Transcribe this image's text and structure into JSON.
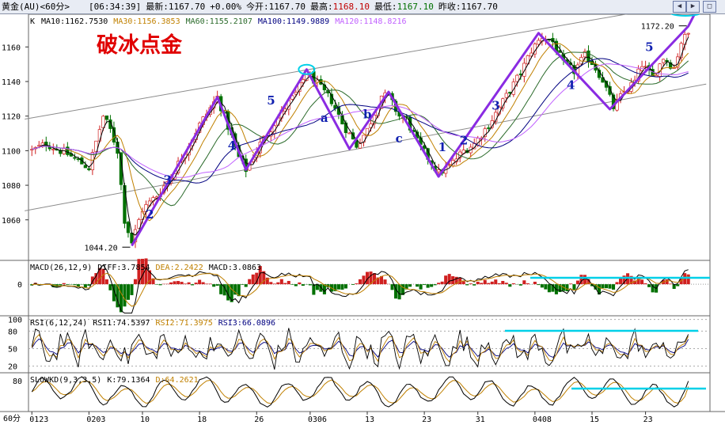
{
  "header": {
    "symbol": "黄金(AU)<60分>",
    "time": "[06:34:39]",
    "latest": "最新:1167.70",
    "change": "+0.00%",
    "open": "今开:1167.70",
    "high_label": "最高:",
    "high_value": "1168.10",
    "low_label": "最低:",
    "low_value": "1167.10",
    "prev_close": "昨收:1167.70"
  },
  "title_text": "破冰点金",
  "colors": {
    "ma10": "#000000",
    "ma30": "#c08000",
    "ma60": "#2a6a2a",
    "ma100": "#000080",
    "ma120": "#c060ff",
    "wave": "#8a2be2",
    "up": "#d02020",
    "down": "#007000",
    "cyan": "#00d0e8"
  },
  "chart_data": [
    {
      "type": "line",
      "panel": "K-line (candlestick with moving averages)",
      "legend_prefix": "K",
      "legend": [
        {
          "name": "MA10",
          "value": "1162.7530",
          "color": "#000000"
        },
        {
          "name": "MA30",
          "value": "1156.3853",
          "color": "#c08000"
        },
        {
          "name": "MA60",
          "value": "1155.2107",
          "color": "#2a6a2a"
        },
        {
          "name": "MA100",
          "value": "1149.9889",
          "color": "#000080"
        },
        {
          "name": "MA120",
          "value": "1148.8216",
          "color": "#c060ff"
        }
      ],
      "y_ticks": [
        1060,
        1080,
        1100,
        1120,
        1140,
        1160
      ],
      "ylim": [
        1037,
        1178
      ],
      "x_ticks": [
        "0123",
        "0203",
        "10",
        "18",
        "26",
        "0306",
        "13",
        "23",
        "31",
        "0408",
        "15",
        "23"
      ],
      "x_tick_index": [
        0,
        16,
        31,
        47,
        63,
        78,
        94,
        110,
        125,
        141,
        157,
        172
      ],
      "n_bars": 185,
      "price_key": [
        [
          0,
          1100
        ],
        [
          4,
          1104
        ],
        [
          10,
          1098
        ],
        [
          16,
          1090
        ],
        [
          20,
          1120
        ],
        [
          22,
          1112
        ],
        [
          24,
          1100
        ],
        [
          26,
          1060
        ],
        [
          28,
          1047
        ],
        [
          31,
          1066
        ],
        [
          35,
          1074
        ],
        [
          39,
          1085
        ],
        [
          43,
          1100
        ],
        [
          47,
          1115
        ],
        [
          52,
          1131
        ],
        [
          55,
          1114
        ],
        [
          58,
          1096
        ],
        [
          60,
          1089
        ],
        [
          64,
          1104
        ],
        [
          68,
          1116
        ],
        [
          71,
          1125
        ],
        [
          74,
          1133
        ],
        [
          77,
          1145
        ],
        [
          79,
          1141
        ],
        [
          81,
          1136
        ],
        [
          84,
          1129
        ],
        [
          87,
          1116
        ],
        [
          91,
          1103
        ],
        [
          94,
          1112
        ],
        [
          98,
          1132
        ],
        [
          100,
          1131
        ],
        [
          103,
          1120
        ],
        [
          105,
          1118
        ],
        [
          108,
          1105
        ],
        [
          112,
          1093
        ],
        [
          114,
          1087
        ],
        [
          117,
          1091
        ],
        [
          121,
          1100
        ],
        [
          124,
          1104
        ],
        [
          128,
          1115
        ],
        [
          131,
          1125
        ],
        [
          134,
          1135
        ],
        [
          137,
          1145
        ],
        [
          140,
          1158
        ],
        [
          143,
          1166
        ],
        [
          146,
          1163
        ],
        [
          149,
          1150
        ],
        [
          152,
          1146
        ],
        [
          155,
          1155
        ],
        [
          157,
          1151
        ],
        [
          160,
          1141
        ],
        [
          163,
          1125
        ],
        [
          166,
          1134
        ],
        [
          169,
          1140
        ],
        [
          171,
          1150
        ],
        [
          174,
          1142
        ],
        [
          177,
          1154
        ],
        [
          180,
          1148
        ],
        [
          182,
          1163
        ],
        [
          184,
          1167.7
        ]
      ],
      "wave_points": [
        [
          28,
          1045
        ],
        [
          52,
          1131
        ],
        [
          60,
          1089
        ],
        [
          77,
          1147
        ],
        [
          89,
          1101
        ],
        [
          100,
          1134
        ],
        [
          114,
          1085
        ],
        [
          142,
          1168
        ],
        [
          162,
          1124
        ],
        [
          184,
          1172
        ]
      ],
      "wave_labels": [
        {
          "text": "2",
          "x": 33,
          "y": 1063
        },
        {
          "text": "3",
          "x": 38,
          "y": 1083
        },
        {
          "text": "4",
          "x": 56,
          "y": 1103
        },
        {
          "text": "5",
          "x": 67,
          "y": 1129
        },
        {
          "text": "a",
          "x": 82,
          "y": 1119
        },
        {
          "text": "b",
          "x": 94,
          "y": 1121
        },
        {
          "text": "c",
          "x": 103,
          "y": 1107
        },
        {
          "text": "1",
          "x": 115,
          "y": 1102
        },
        {
          "text": "2",
          "x": 121,
          "y": 1106
        },
        {
          "text": "3",
          "x": 130,
          "y": 1126
        },
        {
          "text": "4",
          "x": 151,
          "y": 1138
        },
        {
          "text": "5",
          "x": 173,
          "y": 1160
        }
      ],
      "annotations": [
        {
          "text": "1044.20",
          "x": 28,
          "y": 1044.2,
          "side": "left"
        },
        {
          "text": "1172.20",
          "x": 184,
          "y": 1172.2,
          "side": "left"
        }
      ],
      "channel_upper": [
        [
          0,
          1119
        ],
        [
          150,
          1173
        ]
      ],
      "channel_lower": [
        [
          0,
          1066
        ],
        [
          185,
          1137
        ]
      ]
    },
    {
      "type": "line",
      "panel": "MACD",
      "legend": [
        {
          "name": "MACD(26,12,9)",
          "value": "",
          "color": "#000000"
        },
        {
          "name": "DIFF",
          "value": "3.7854",
          "color": "#000000"
        },
        {
          "name": "DEA",
          "value": "2.2422",
          "color": "#c08000"
        },
        {
          "name": "MACD",
          "value": "3.0863",
          "color": "#000000"
        }
      ],
      "y_ticks": [
        0
      ],
      "ylim": [
        -8,
        6
      ]
    },
    {
      "type": "line",
      "panel": "RSI",
      "legend": [
        {
          "name": "RSI(6,12,24)",
          "value": "",
          "color": "#000000"
        },
        {
          "name": "RSI1",
          "value": "74.5397",
          "color": "#000000"
        },
        {
          "name": "RSI2",
          "value": "71.3975",
          "color": "#c08000"
        },
        {
          "name": "RSI3",
          "value": "66.0896",
          "color": "#000080"
        }
      ],
      "y_ticks": [
        20,
        50,
        80,
        100
      ],
      "ylim": [
        10,
        105
      ]
    },
    {
      "type": "line",
      "panel": "SLOWKD",
      "legend": [
        {
          "name": "SLOWKD(9,3,3,5)",
          "value": "",
          "color": "#000000"
        },
        {
          "name": "K",
          "value": "79.1364",
          "color": "#000000"
        },
        {
          "name": "D",
          "value": "64.2621",
          "color": "#c08000"
        }
      ],
      "y_ticks": [
        80
      ],
      "ylim": [
        0,
        100
      ]
    }
  ],
  "footer": {
    "period": "60分"
  }
}
